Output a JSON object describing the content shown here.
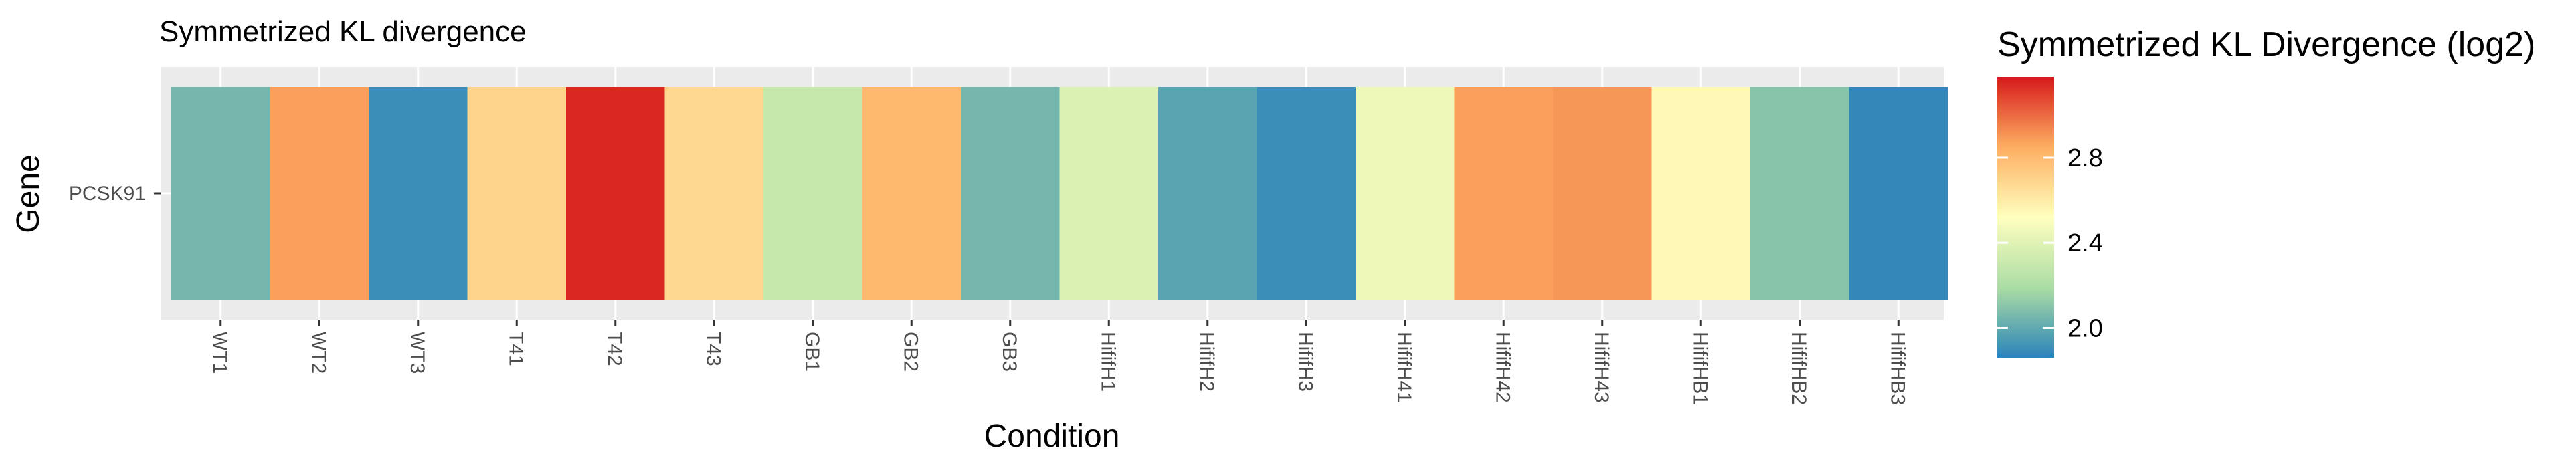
{
  "chart_data": {
    "type": "heatmap",
    "title": "Symmetrized KL divergence",
    "xlabel": "Condition",
    "ylabel": "Gene",
    "rows": [
      "PCSK91"
    ],
    "columns": [
      "WT1",
      "WT2",
      "WT3",
      "T41",
      "T42",
      "T43",
      "GB1",
      "GB2",
      "GB3",
      "HififH1",
      "HififH2",
      "HififH3",
      "HififH41",
      "HififH42",
      "HififH43",
      "HififHB1",
      "HififHB2",
      "HififHB3"
    ],
    "values": [
      [
        2.05,
        2.88,
        1.9,
        2.7,
        3.15,
        2.68,
        2.3,
        2.8,
        2.05,
        2.38,
        1.98,
        1.9,
        2.45,
        2.88,
        2.9,
        2.55,
        2.1,
        1.88
      ]
    ],
    "colorbar": {
      "title": "Symmetrized KL Divergence (log2)",
      "min": 1.86,
      "max": 3.18,
      "ticks": [
        2.0,
        2.4,
        2.8
      ],
      "tick_labels": [
        "2.0",
        "2.4",
        "2.8"
      ],
      "palette": [
        "#2b83ba",
        "#abdda4",
        "#ffffbf",
        "#fdae61",
        "#d7191c"
      ]
    },
    "panel_background": "#ebebeb",
    "grid": true,
    "legend_position": "right"
  }
}
